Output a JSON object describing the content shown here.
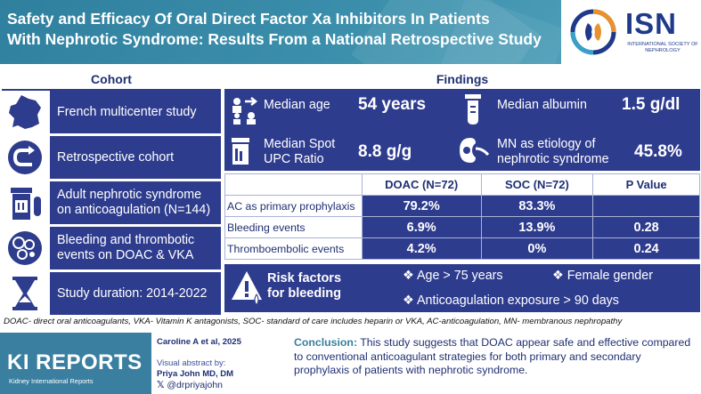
{
  "header": {
    "title_line1": "Safety and Efficacy Of Oral Direct Factor Xa Inhibitors In Patients",
    "title_line2": "With Nephrotic Syndrome: Results From a National Retrospective Study",
    "logo_text": "ISN",
    "logo_subtitle": "INTERNATIONAL SOCIETY OF NEPHROLOGY"
  },
  "cohort": {
    "heading": "Cohort",
    "items": [
      {
        "icon": "france-map-icon",
        "label": "French multicenter study"
      },
      {
        "icon": "u-turn-arrow-icon",
        "label": "Retrospective cohort"
      },
      {
        "icon": "pill-bottle-icon",
        "label": "Adult nephrotic syndrome on anticoagulation (N=144)"
      },
      {
        "icon": "blood-cells-icon",
        "label": "Bleeding and thrombotic events on DOAC & VKA"
      },
      {
        "icon": "hourglass-icon",
        "label": "Study duration: 2014-2022"
      }
    ]
  },
  "findings": {
    "heading": "Findings",
    "stats": [
      {
        "icon": "people-arrow-icon",
        "label": "Median age",
        "value": "54 years"
      },
      {
        "icon": "test-tube-icon",
        "label": "Median albumin",
        "value": "1.5 g/dl"
      },
      {
        "icon": "urine-container-icon",
        "label": "Median Spot UPC Ratio",
        "value": "8.8 g/g"
      },
      {
        "icon": "kidney-icon",
        "label": "MN as etiology of nephrotic syndrome",
        "value": "45.8%"
      }
    ],
    "table": {
      "headers": [
        "",
        "DOAC (N=72)",
        "SOC (N=72)",
        "P Value"
      ],
      "rows": [
        {
          "label": "AC as primary prophylaxis",
          "doac": "79.2%",
          "soc": "83.3%",
          "p": ""
        },
        {
          "label": "Bleeding events",
          "doac": "6.9%",
          "soc": "13.9%",
          "p": "0.28"
        },
        {
          "label": "Thromboembolic events",
          "doac": "4.2%",
          "soc": "0%",
          "p": "0.24"
        }
      ]
    },
    "risk": {
      "title_line1": "Risk factors",
      "title_line2": "for bleeding",
      "items": [
        "Age > 75 years",
        "Female gender",
        "Anticoagulation exposure > 90 days"
      ]
    }
  },
  "abbreviations": "DOAC- direct oral anticoagulants, VKA- Vitamin K antagonists, SOC- standard of care includes heparin or VKA, AC-anticoagulation, MN- membranous nephropathy",
  "footer": {
    "journal": "KI REPORTS",
    "journal_sub": "Kidney International Reports",
    "citation": "Caroline A et al, 2025",
    "abstract_by": "Visual abstract by:",
    "author": "Priya John MD, DM",
    "handle": "@drpriyajohn",
    "conclusion_label": "Conclusion:",
    "conclusion_text": " This study suggests that DOAC appear safe and effective compared to conventional anticoagulant strategies for both primary and secondary prophylaxis of patients with nephrotic syndrome."
  },
  "colors": {
    "navy": "#2e3c8e",
    "teal": "#3a7fa0",
    "header_blue": "#3d91ad"
  }
}
